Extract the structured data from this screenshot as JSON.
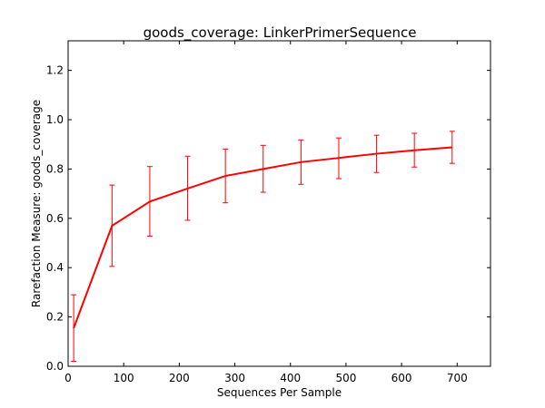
{
  "chart_data": {
    "type": "line",
    "title": "goods_coverage: LinkerPrimerSequence",
    "xlabel": "Sequences Per Sample",
    "ylabel": "Rarefaction Measure: goods_coverage",
    "xlim": [
      0,
      760
    ],
    "ylim": [
      0.0,
      1.32
    ],
    "xticks": [
      0,
      100,
      200,
      300,
      400,
      500,
      600,
      700
    ],
    "yticks": [
      0.0,
      0.2,
      0.4,
      0.6,
      0.8,
      1.0,
      1.2
    ],
    "xtick_labels": [
      "0",
      "100",
      "200",
      "300",
      "400",
      "500",
      "600",
      "700"
    ],
    "ytick_labels": [
      "0.0",
      "0.2",
      "0.4",
      "0.6",
      "0.8",
      "1.0",
      "1.2"
    ],
    "grid": false,
    "legend": false,
    "series": [
      {
        "color": "#ff0000",
        "x": [
          10,
          79,
          147,
          215,
          283,
          351,
          419,
          487,
          555,
          623,
          691
        ],
        "y": [
          0.155,
          0.57,
          0.668,
          0.721,
          0.772,
          0.8,
          0.828,
          0.845,
          0.862,
          0.876,
          0.888
        ],
        "err_low": [
          0.02,
          0.405,
          0.528,
          0.592,
          0.663,
          0.706,
          0.738,
          0.761,
          0.786,
          0.808,
          0.823
        ],
        "err_high": [
          0.29,
          0.735,
          0.81,
          0.852,
          0.881,
          0.896,
          0.918,
          0.926,
          0.937,
          0.945,
          0.953
        ]
      }
    ]
  }
}
